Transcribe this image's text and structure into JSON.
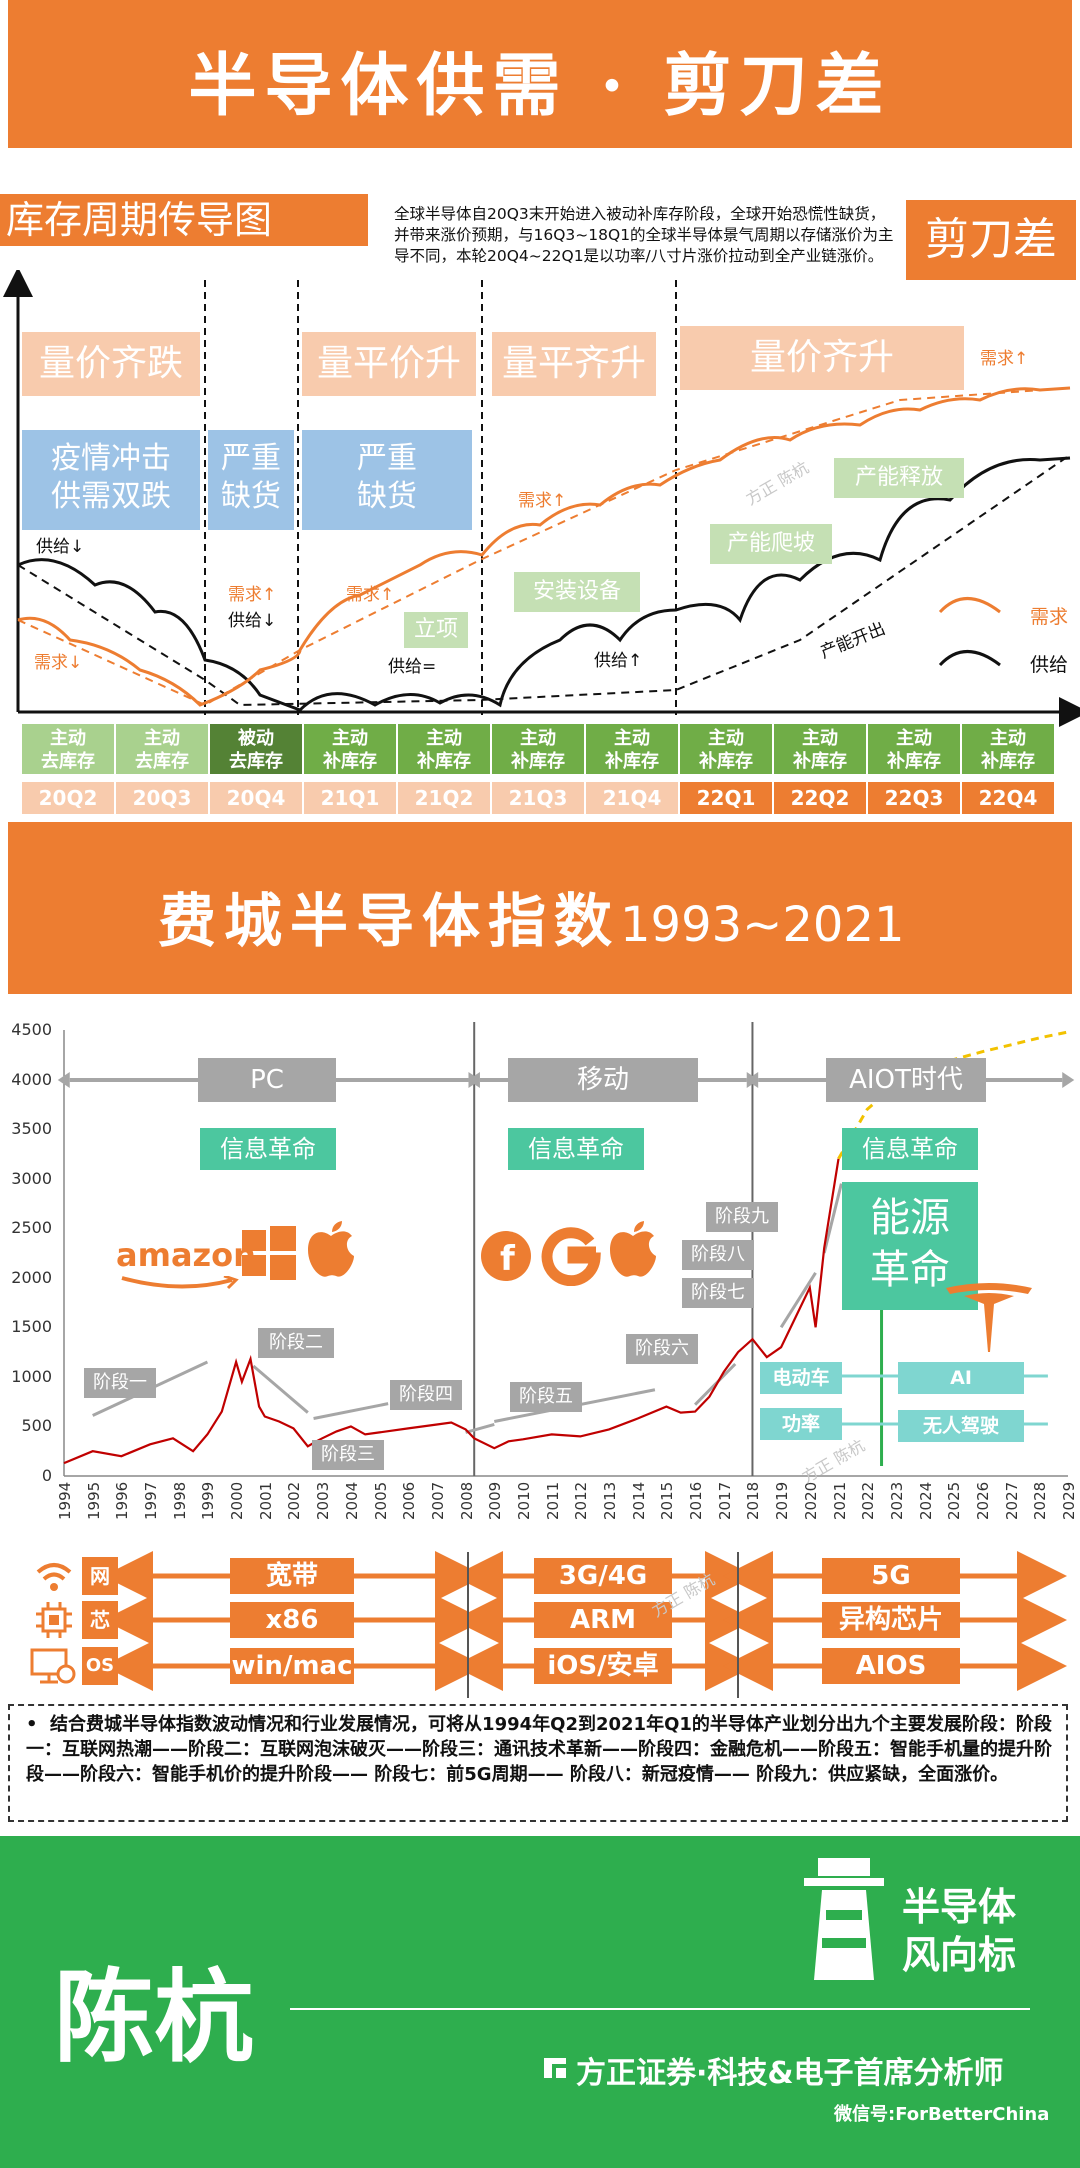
{
  "header": {
    "title": "半导体供需 · 剪刀差"
  },
  "section1": {
    "subtitle": "库存周期传导图",
    "scissor_label": "剪刀差",
    "description": "全球半导体自20Q3末开始进入被动补库存阶段，全球开始恐慌性缺货，并带来涨价预期，与16Q3~18Q1的全球半导体景气周期以存储涨价为主导不同，本轮20Q4~22Q1是以功率/八寸片涨价拉动到全产业链涨价。",
    "phases": [
      "量价齐跌",
      "量平价升",
      "量平齐升",
      "量价齐升"
    ],
    "blue_boxes": [
      "疫情冲击\n供需双跌",
      "严重\n缺货",
      "严重\n缺货"
    ],
    "green_boxes": [
      "立项",
      "安装设备",
      "产能爬坡",
      "产能释放"
    ],
    "annotations": {
      "supply_down_1": "供给↓",
      "demand_down": "需求↓",
      "demand_up_1": "需求↑",
      "supply_down_2": "供给↓",
      "demand_up_2": "需求↑",
      "supply_flat": "供给=",
      "demand_up_3": "需求↑",
      "supply_up": "供给↑",
      "demand_up_4": "需求↑",
      "capacity_out": "产能开出"
    },
    "legend": {
      "demand": "需求",
      "supply": "供给"
    },
    "inventory_states": [
      "主动\n去库存",
      "主动\n去库存",
      "被动\n去库存",
      "主动\n补库存",
      "主动\n补库存",
      "主动\n补库存",
      "主动\n补库存",
      "主动\n补库存",
      "主动\n补库存",
      "主动\n补库存",
      "主动\n补库存"
    ],
    "quarters": [
      "20Q2",
      "20Q3",
      "20Q4",
      "21Q1",
      "21Q2",
      "21Q3",
      "21Q4",
      "22Q1",
      "22Q2",
      "22Q3",
      "22Q4"
    ],
    "watermark": "方正 陈杭"
  },
  "section2": {
    "title_cn": "费城半导体指数",
    "title_years": "1993~2021",
    "eras": [
      "PC",
      "移动",
      "AIOT时代"
    ],
    "revolutions": [
      "信息革命",
      "信息革命",
      "信息革命"
    ],
    "energy_revolution": "能源\n革命",
    "stages": [
      "阶段一",
      "阶段二",
      "阶段三",
      "阶段四",
      "阶段五",
      "阶段六",
      "阶段七",
      "阶段八",
      "阶段九"
    ],
    "aiot_tags": [
      "电动车",
      "AI",
      "功率",
      "无人驾驶"
    ],
    "logos": {
      "amazon": "amazon"
    },
    "tech_rows": [
      {
        "label": "网",
        "icon": "wifi-icon",
        "items": [
          "宽带",
          "3G/4G",
          "5G"
        ]
      },
      {
        "label": "芯",
        "icon": "chip-icon",
        "items": [
          "x86",
          "ARM",
          "异构芯片"
        ]
      },
      {
        "label": "OS",
        "icon": "os-icon",
        "items": [
          "win/mac",
          "iOS/安卓",
          "AIOS"
        ]
      }
    ],
    "conclusion": "结合费城半导体指数波动情况和行业发展情况，可将从1994年Q2到2021年Q1的半导体产业划分出九个主要发展阶段：阶段一：互联网热潮——阶段二：互联网泡沫破灭——阶段三：通讯技术革新——阶段四：金融危机——阶段五：智能手机量的提升阶段——阶段六：智能手机价的提升阶段—— 阶段七：前5G周期—— 阶段八：新冠疫情—— 阶段九：供应紧缺，全面涨价。"
  },
  "chart_data": {
    "type": "line",
    "title": "费城半导体指数1993~2021",
    "xlabel": "",
    "ylabel": "",
    "ylim": [
      0,
      4500
    ],
    "yticks": [
      0,
      500,
      1000,
      1500,
      2000,
      2500,
      3000,
      3500,
      4000,
      4500
    ],
    "xlim": [
      1994,
      2029
    ],
    "xticks": [
      1994,
      1995,
      1996,
      1997,
      1998,
      1999,
      2000,
      2001,
      2002,
      2003,
      2004,
      2005,
      2006,
      2007,
      2008,
      2009,
      2010,
      2011,
      2012,
      2013,
      2014,
      2015,
      2016,
      2017,
      2018,
      2019,
      2020,
      2021,
      2022,
      2023,
      2024,
      2025,
      2026,
      2027,
      2028,
      2029
    ],
    "series": [
      {
        "name": "",
        "x": [
          1994,
          1995,
          1996,
          1997,
          1997.8,
          1998.5,
          1999,
          1999.5,
          2000,
          2000.2,
          2000.5,
          2000.8,
          2001,
          2001.5,
          2002,
          2002.5,
          2002.8,
          2003,
          2003.5,
          2004,
          2004.5,
          2005,
          2006,
          2007,
          2007.5,
          2008,
          2008.3,
          2009,
          2009.5,
          2010,
          2011,
          2012,
          2013,
          2014,
          2015,
          2015.5,
          2016,
          2016.5,
          2017,
          2017.5,
          2018,
          2018.5,
          2019,
          2019.5,
          2020,
          2020.2,
          2020.5,
          2021
        ],
        "y": [
          130,
          250,
          200,
          320,
          380,
          250,
          420,
          650,
          1150,
          950,
          1180,
          700,
          600,
          550,
          480,
          300,
          350,
          380,
          450,
          500,
          420,
          440,
          480,
          520,
          540,
          470,
          380,
          280,
          350,
          370,
          420,
          400,
          470,
          580,
          700,
          640,
          650,
          800,
          1050,
          1250,
          1380,
          1200,
          1300,
          1600,
          1900,
          1500,
          2300,
          3200
        ]
      },
      {
        "name": "",
        "x": [
          2021,
          2022,
          2023,
          2024,
          2025,
          2026,
          2027,
          2028,
          2029
        ],
        "y": [
          3200,
          3700,
          3950,
          4100,
          4200,
          4280,
          4350,
          4420,
          4480
        ],
        "style": "dashed"
      }
    ]
  },
  "footer": {
    "name": "陈杭",
    "brand_line1": "半导体",
    "brand_line2": "风向标",
    "org": "方正证券·科技&电子首席分析师",
    "wechat": "微信号:ForBetterChina"
  }
}
